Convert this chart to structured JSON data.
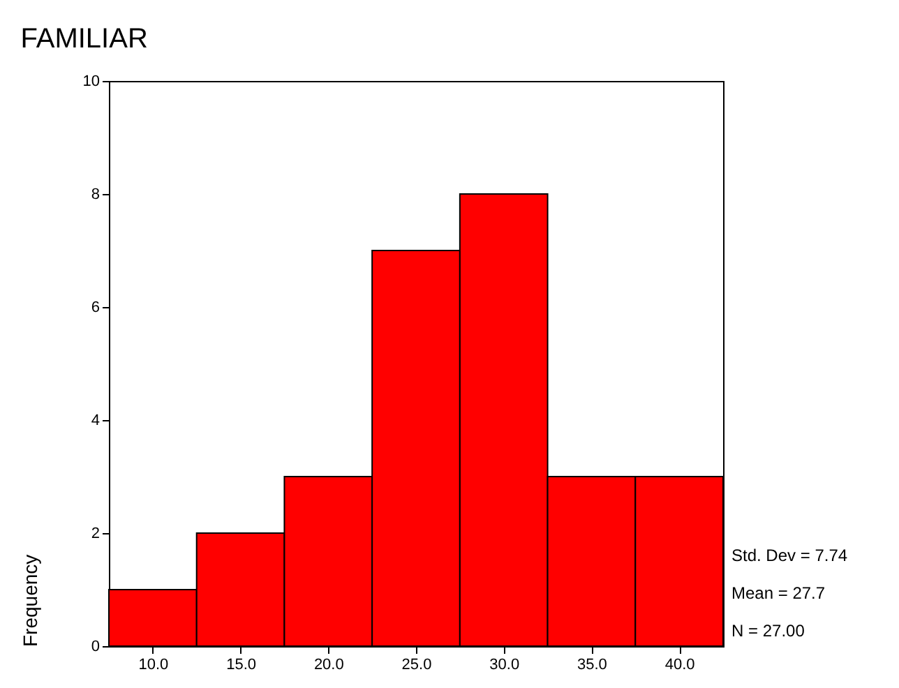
{
  "chart_data": {
    "type": "histogram",
    "title": "FAMILIAR",
    "ylabel": "Frequency",
    "bins": [
      7.5,
      12.5,
      17.5,
      22.5,
      27.5,
      32.5,
      37.5,
      42.5
    ],
    "values": [
      1,
      2,
      3,
      7,
      8,
      3,
      3
    ],
    "color": "#ff0000",
    "xlim": [
      7.5,
      42.5
    ],
    "xticks": [
      {
        "value": 10,
        "label": "10.0"
      },
      {
        "value": 15,
        "label": "15.0"
      },
      {
        "value": 20,
        "label": "20.0"
      },
      {
        "value": 25,
        "label": "25.0"
      },
      {
        "value": 30,
        "label": "30.0"
      },
      {
        "value": 35,
        "label": "35.0"
      },
      {
        "value": 40,
        "label": "40.0"
      }
    ],
    "ylim": [
      0,
      10
    ],
    "yticks": [
      0,
      2,
      4,
      6,
      8,
      10
    ],
    "grid": false,
    "annotations": [
      "Std. Dev = 7.74",
      "Mean = 27.7",
      "N = 27.00"
    ]
  }
}
